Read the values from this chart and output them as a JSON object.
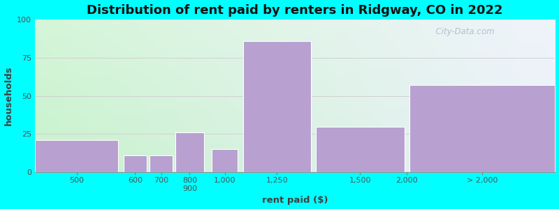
{
  "title": "Distribution of rent paid by renters in Ridgway, CO in 2022",
  "xlabel": "rent paid ($)",
  "ylabel": "households",
  "bar_heights": [
    21,
    11,
    11,
    26,
    15,
    86,
    30,
    57
  ],
  "bar_lefts": [
    0,
    170,
    220,
    270,
    340,
    400,
    540,
    720
  ],
  "bar_widths": [
    160,
    45,
    45,
    55,
    50,
    130,
    170,
    280
  ],
  "tick_labels": [
    "500",
    "600",
    "700",
    "800\n900",
    "1,000",
    "1,250",
    "1,500",
    "2,000",
    "> 2,000"
  ],
  "tick_positions_extra": [
    855
  ],
  "bar_color": "#b8a0d0",
  "bar_edgecolor": "#ffffff",
  "ylim": [
    0,
    100
  ],
  "yticks": [
    0,
    25,
    50,
    75,
    100
  ],
  "bg_color": "#00ffff",
  "title_fontsize": 13,
  "axis_label_fontsize": 9.5,
  "tick_fontsize": 8,
  "watermark": "  City-Data.com"
}
